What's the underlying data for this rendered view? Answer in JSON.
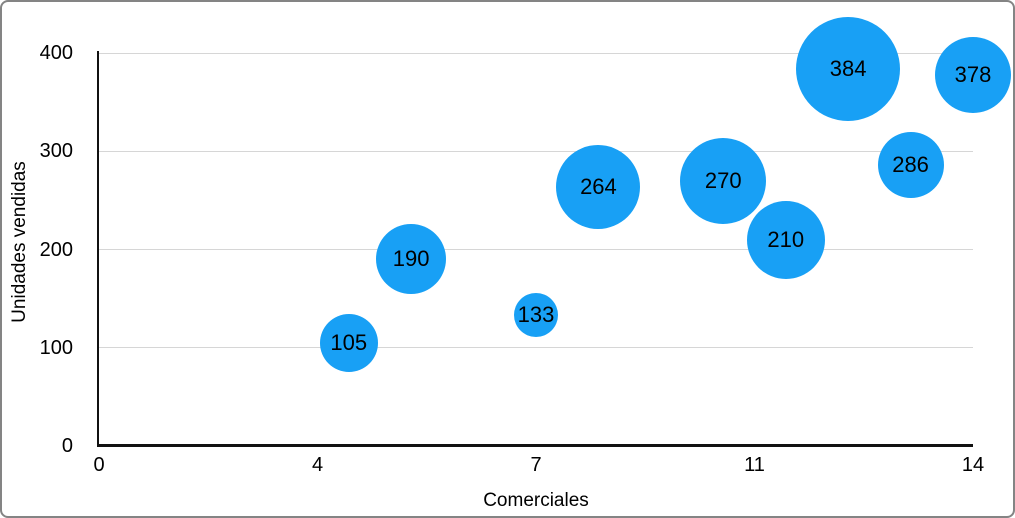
{
  "figure": {
    "background": "#ffffff",
    "border_color": "#848484"
  },
  "chart_data": {
    "type": "scatter",
    "subtype": "bubble",
    "title": "",
    "xlabel": "Comerciales",
    "ylabel": "Unidades vendidas",
    "xlim": [
      0,
      14
    ],
    "ylim": [
      0,
      400
    ],
    "grid": "horizontal",
    "legend": "none",
    "bubble_color": "#18A0F5",
    "gridline_color": "#d6d6d6",
    "axis_color": "#111111",
    "x_tick_positions": [
      0,
      3.5,
      7,
      10.5,
      14
    ],
    "x_tick_labels": [
      "0",
      "4",
      "7",
      "11",
      "14"
    ],
    "y_tick_values": [
      0,
      100,
      200,
      300,
      400
    ],
    "y_tick_labels": [
      "0",
      "100",
      "200",
      "300",
      "400"
    ],
    "points": [
      {
        "x": 4,
        "y": 105,
        "label": "105",
        "radius_px": 29
      },
      {
        "x": 5,
        "y": 190,
        "label": "190",
        "radius_px": 35
      },
      {
        "x": 7,
        "y": 133,
        "label": "133",
        "radius_px": 22
      },
      {
        "x": 8,
        "y": 264,
        "label": "264",
        "radius_px": 42
      },
      {
        "x": 10,
        "y": 270,
        "label": "270",
        "radius_px": 43
      },
      {
        "x": 11,
        "y": 210,
        "label": "210",
        "radius_px": 39
      },
      {
        "x": 12,
        "y": 384,
        "label": "384",
        "radius_px": 52
      },
      {
        "x": 13,
        "y": 286,
        "label": "286",
        "radius_px": 33
      },
      {
        "x": 14,
        "y": 378,
        "label": "378",
        "radius_px": 38
      }
    ]
  }
}
